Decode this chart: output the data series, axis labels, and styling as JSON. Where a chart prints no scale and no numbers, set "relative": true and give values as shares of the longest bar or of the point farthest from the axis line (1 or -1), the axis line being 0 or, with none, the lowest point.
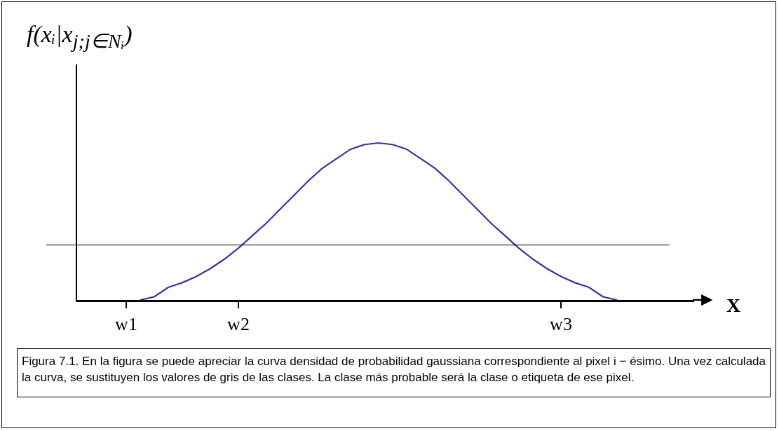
{
  "chart_data": {
    "type": "line",
    "relative": true,
    "ylabel": "f(xᵢ|x$_{j;j∈Nᵢ}$)",
    "xlabel": "X",
    "categories": [
      null,
      null,
      null,
      "w1",
      null,
      null,
      null,
      null,
      null,
      null,
      null,
      "w2",
      null,
      null,
      null,
      null,
      null,
      null,
      null,
      null,
      null,
      null,
      null,
      null,
      null,
      null,
      null,
      null,
      null,
      null,
      null,
      null,
      null,
      null,
      "w3",
      null,
      null,
      null,
      null,
      null,
      null,
      null,
      null,
      null
    ],
    "series": [
      {
        "color": "#33379a",
        "values": [
          null,
          null,
          null,
          null,
          0,
          0.02,
          0.08,
          0.11,
          0.15,
          0.2,
          0.26,
          0.33,
          0.41,
          0.49,
          0.58,
          0.67,
          0.76,
          0.84,
          0.9,
          0.96,
          0.99,
          1,
          0.99,
          0.96,
          0.9,
          0.84,
          0.76,
          0.67,
          0.58,
          0.49,
          0.41,
          0.33,
          0.26,
          0.2,
          0.15,
          0.11,
          0.08,
          0.02,
          0,
          null,
          null,
          null,
          null,
          null
        ]
      }
    ],
    "ref_lines": [
      {
        "axis": "y",
        "value": 0.35,
        "color": "#000000"
      }
    ],
    "marker": "none",
    "line_style": "solid",
    "grid": false,
    "legend": false,
    "annotations": [
      "Figura 7.1. En la figura se puede apreciar la curva densidad de probabilidad gaussiana correspondiente al pixel i − ésimo. Una vez calculada la curva, se sustituyen los valores de gris de las clases. La clase más probable será la clase o etiqueta de ese pixel."
    ]
  }
}
